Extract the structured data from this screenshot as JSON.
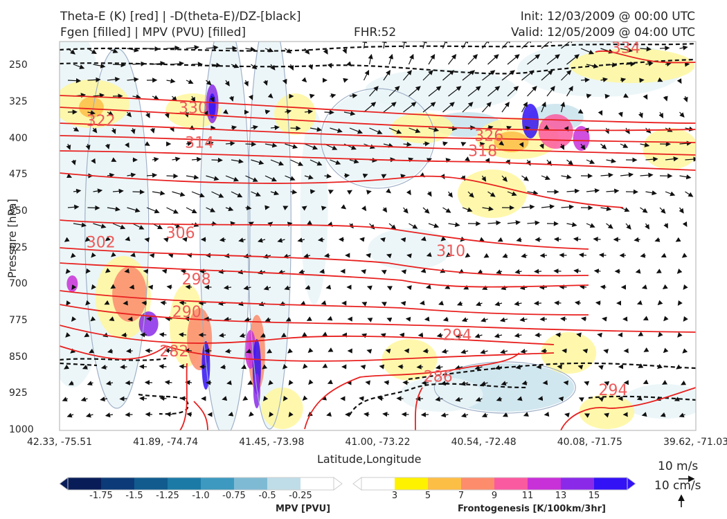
{
  "header": {
    "title_left_1": "Theta-E (K) [red] | -D(theta-E)/DZ-[black]",
    "title_left_2": "Fgen [filled] | MPV (PVU) [filled]",
    "title_center": "FHR:52",
    "title_right_1": "Init: 12/03/2009 @ 00:00 UTC",
    "title_right_2": "Valid: 12/05/2009 @ 04:00 UTC"
  },
  "chart_data": {
    "type": "cross-section",
    "xlabel": "Latitude,Longitude",
    "ylabel": "Pressure [hPa]",
    "x_ticks": [
      "42.33, -75.51",
      "41.89, -74.74",
      "41.45, -73.98",
      "41.00, -73.22",
      "40.54, -72.48",
      "40.08, -71.75",
      "39.62, -71.03"
    ],
    "y_ticks": [
      250,
      325,
      400,
      475,
      550,
      625,
      700,
      775,
      850,
      925,
      1000
    ],
    "ylim": [
      1000,
      200
    ],
    "theta_e_labels": [
      {
        "value": "334",
        "x_frac": 0.89,
        "p": 212
      },
      {
        "value": "330",
        "x_frac": 0.21,
        "p": 336
      },
      {
        "value": "322",
        "x_frac": 0.065,
        "p": 362
      },
      {
        "value": "326",
        "x_frac": 0.675,
        "p": 393
      },
      {
        "value": "314",
        "x_frac": 0.22,
        "p": 407
      },
      {
        "value": "318",
        "x_frac": 0.665,
        "p": 424
      },
      {
        "value": "306",
        "x_frac": 0.19,
        "p": 593
      },
      {
        "value": "302",
        "x_frac": 0.065,
        "p": 612
      },
      {
        "value": "310",
        "x_frac": 0.615,
        "p": 630
      },
      {
        "value": "298",
        "x_frac": 0.215,
        "p": 688
      },
      {
        "value": "290",
        "x_frac": 0.2,
        "p": 755
      },
      {
        "value": "294",
        "x_frac": 0.625,
        "p": 803
      },
      {
        "value": "282",
        "x_frac": 0.18,
        "p": 836
      },
      {
        "value": "286",
        "x_frac": 0.595,
        "p": 888
      },
      {
        "value": "294",
        "x_frac": 0.87,
        "p": 916
      }
    ],
    "colorbar_mpv": {
      "label": "MPV [PVU]",
      "ticks": [
        "-1.75",
        "-1.5",
        "-1.25",
        "-1.0",
        "-0.75",
        "-0.5",
        "-0.25"
      ],
      "colors": [
        "#081d58",
        "#0c3a78",
        "#115b8f",
        "#1c7aa6",
        "#3d99bf",
        "#7fbad4",
        "#bfdde8",
        "#ffffff"
      ]
    },
    "colorbar_fgen": {
      "label": "Frontogenesis [K/100km/3hr]",
      "ticks": [
        "3",
        "5",
        "7",
        "9",
        "11",
        "13",
        "15"
      ],
      "colors": [
        "#ffffff",
        "#fff200",
        "#fdbe45",
        "#fc8c6c",
        "#fa5aa0",
        "#c830d8",
        "#8a2ae8",
        "#3312f5"
      ]
    },
    "vector_reference": {
      "horizontal": "10 m/s",
      "vertical": "10 cm/s"
    }
  }
}
